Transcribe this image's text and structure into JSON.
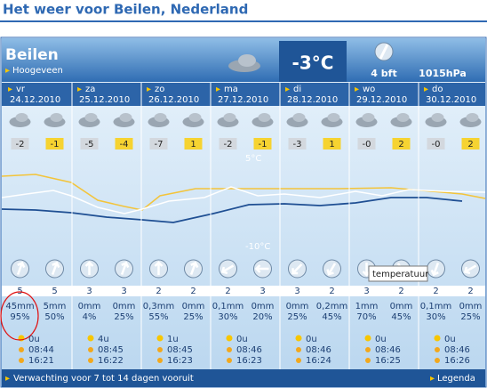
{
  "header": {
    "title": "Het weer voor Beilen, Nederland"
  },
  "location": {
    "name": "Beilen",
    "station": "Hoogeveen"
  },
  "current": {
    "temperature": "-3°C",
    "wind": "4 bft",
    "pressure": "1015hPa"
  },
  "graph": {
    "label_high": "5°C",
    "label_low": "-10°C",
    "tooltip": "temperatuur"
  },
  "days": [
    {
      "day": "vr",
      "date": "24.12.2010",
      "periods": [
        {
          "temp": "-2",
          "wind": "5",
          "precip": "45mm",
          "chance": "95%"
        },
        {
          "temp": "-1",
          "wind": "5",
          "precip": "5mm",
          "chance": "50%"
        }
      ],
      "sun_hours": "0u",
      "sunrise": "08:44",
      "sunset": "16:21"
    },
    {
      "day": "za",
      "date": "25.12.2010",
      "periods": [
        {
          "temp": "-5",
          "wind": "3",
          "precip": "0mm",
          "chance": "4%"
        },
        {
          "temp": "-4",
          "wind": "3",
          "precip": "0mm",
          "chance": "25%"
        }
      ],
      "sun_hours": "4u",
      "sunrise": "08:45",
      "sunset": "16:22"
    },
    {
      "day": "zo",
      "date": "26.12.2010",
      "periods": [
        {
          "temp": "-7",
          "wind": "2",
          "precip": "0,3mm",
          "chance": "55%"
        },
        {
          "temp": "1",
          "wind": "2",
          "precip": "0mm",
          "chance": "25%"
        }
      ],
      "sun_hours": "1u",
      "sunrise": "08:45",
      "sunset": "16:23"
    },
    {
      "day": "ma",
      "date": "27.12.2010",
      "periods": [
        {
          "temp": "-2",
          "wind": "2",
          "precip": "0,1mm",
          "chance": "30%"
        },
        {
          "temp": "-1",
          "wind": "3",
          "precip": "0mm",
          "chance": "20%"
        }
      ],
      "sun_hours": "0u",
      "sunrise": "08:46",
      "sunset": "16:23"
    },
    {
      "day": "di",
      "date": "28.12.2010",
      "periods": [
        {
          "temp": "-3",
          "wind": "3",
          "precip": "0mm",
          "chance": "25%"
        },
        {
          "temp": "1",
          "wind": "2",
          "precip": "0,2mm",
          "chance": "45%"
        }
      ],
      "sun_hours": "0u",
      "sunrise": "08:46",
      "sunset": "16:24"
    },
    {
      "day": "wo",
      "date": "29.12.2010",
      "periods": [
        {
          "temp": "-0",
          "wind": "3",
          "precip": "1mm",
          "chance": "70%"
        },
        {
          "temp": "2",
          "wind": "2",
          "precip": "0mm",
          "chance": "45%"
        }
      ],
      "sun_hours": "0u",
      "sunrise": "08:46",
      "sunset": "16:25"
    },
    {
      "day": "do",
      "date": "30.12.2010",
      "periods": [
        {
          "temp": "-0",
          "wind": "2",
          "precip": "0,1mm",
          "chance": "30%"
        },
        {
          "temp": "2",
          "wind": "2",
          "precip": "0mm",
          "chance": "25%"
        }
      ],
      "sun_hours": "0u",
      "sunrise": "08:46",
      "sunset": "16:26"
    }
  ],
  "footer": {
    "long_range": "Verwachting voor 7 tot 14 dagen vooruit",
    "legend": "Legenda"
  }
}
